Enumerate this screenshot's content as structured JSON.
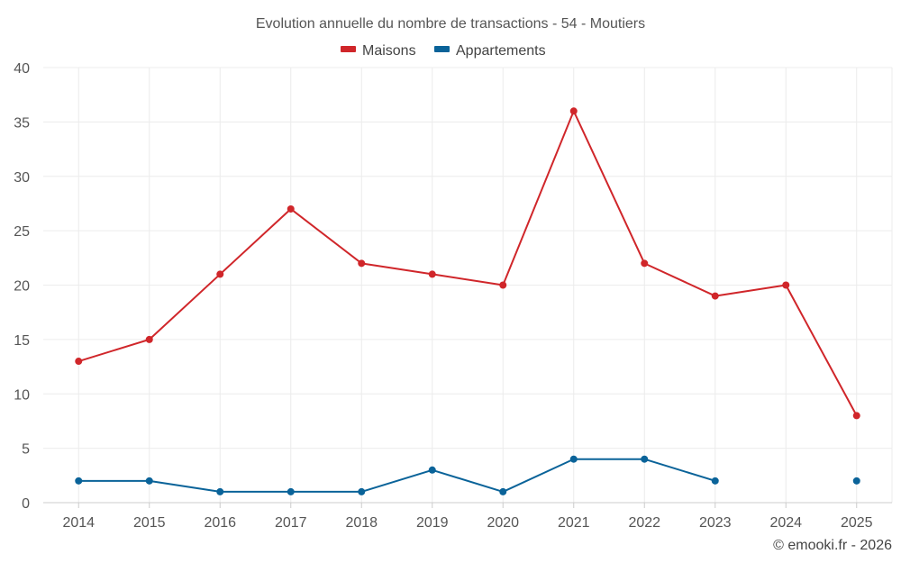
{
  "chart_data": {
    "type": "line",
    "title": "Evolution annuelle du nombre de transactions - 54 - Moutiers",
    "categories": [
      "2014",
      "2015",
      "2016",
      "2017",
      "2018",
      "2019",
      "2020",
      "2021",
      "2022",
      "2023",
      "2024",
      "2025"
    ],
    "ylim": [
      0,
      40
    ],
    "yticks": [
      "0",
      "5",
      "10",
      "15",
      "20",
      "25",
      "30",
      "35",
      "40"
    ],
    "grid": true,
    "legend_position": "top-center",
    "series": [
      {
        "name": "Maisons",
        "color": "#d0262a",
        "values": [
          13,
          15,
          21,
          27,
          22,
          21,
          20,
          36,
          22,
          19,
          20,
          8
        ]
      },
      {
        "name": "Appartements",
        "color": "#0a6399",
        "values": [
          2,
          2,
          1,
          1,
          1,
          3,
          1,
          4,
          4,
          2,
          null,
          2
        ]
      }
    ],
    "credit": "© emooki.fr - 2026"
  }
}
